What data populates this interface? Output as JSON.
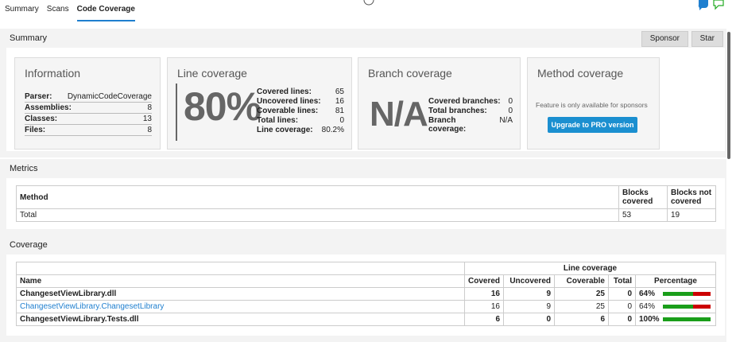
{
  "tabs": [
    "Summary",
    "Scans",
    "Code Coverage"
  ],
  "summary": {
    "title": "Summary",
    "buttons": [
      "Sponsor",
      "Star"
    ]
  },
  "information": {
    "title": "Information",
    "rows": [
      [
        "Parser:",
        "DynamicCodeCoverage"
      ],
      [
        "Assemblies:",
        "8"
      ],
      [
        "Classes:",
        "13"
      ],
      [
        "Files:",
        "8"
      ]
    ]
  },
  "line_coverage": {
    "title": "Line coverage",
    "big": "80%",
    "rows": [
      [
        "Covered lines:",
        "65"
      ],
      [
        "Uncovered lines:",
        "16"
      ],
      [
        "Coverable lines:",
        "81"
      ],
      [
        "Total lines:",
        "0"
      ],
      [
        "Line coverage:",
        "80.2%"
      ]
    ]
  },
  "branch_coverage": {
    "title": "Branch coverage",
    "big": "N/A",
    "rows": [
      [
        "Covered branches:",
        "0"
      ],
      [
        "Total branches:",
        "0"
      ],
      [
        "Branch coverage:",
        "N/A"
      ]
    ]
  },
  "method_coverage": {
    "title": "Method coverage",
    "note": "Feature is only available for sponsors",
    "button": "Upgrade to PRO version"
  },
  "metrics": {
    "title": "Metrics",
    "header": [
      "Method",
      "Blocks covered",
      "Blocks not covered"
    ],
    "rows": [
      [
        "Total",
        "53",
        "19"
      ]
    ]
  },
  "coverage": {
    "title": "Coverage",
    "group_header": "Line coverage",
    "header": [
      "Name",
      "Covered",
      "Uncovered",
      "Coverable",
      "Total",
      "Percentage"
    ],
    "rows": [
      {
        "name": "ChangesetViewLibrary.dll",
        "covered": 16,
        "uncovered": 9,
        "coverable": 25,
        "total": 0,
        "percentage": "64%"
      },
      {
        "name": "ChangesetViewLibrary.ChangesetLibrary",
        "covered": 16,
        "uncovered": 9,
        "coverable": 25,
        "total": 0,
        "percentage": "64%"
      },
      {
        "name": "ChangesetViewLibrary.Tests.dll",
        "covered": 6,
        "uncovered": 0,
        "coverable": 6,
        "total": 0,
        "percentage": "100%"
      }
    ]
  }
}
